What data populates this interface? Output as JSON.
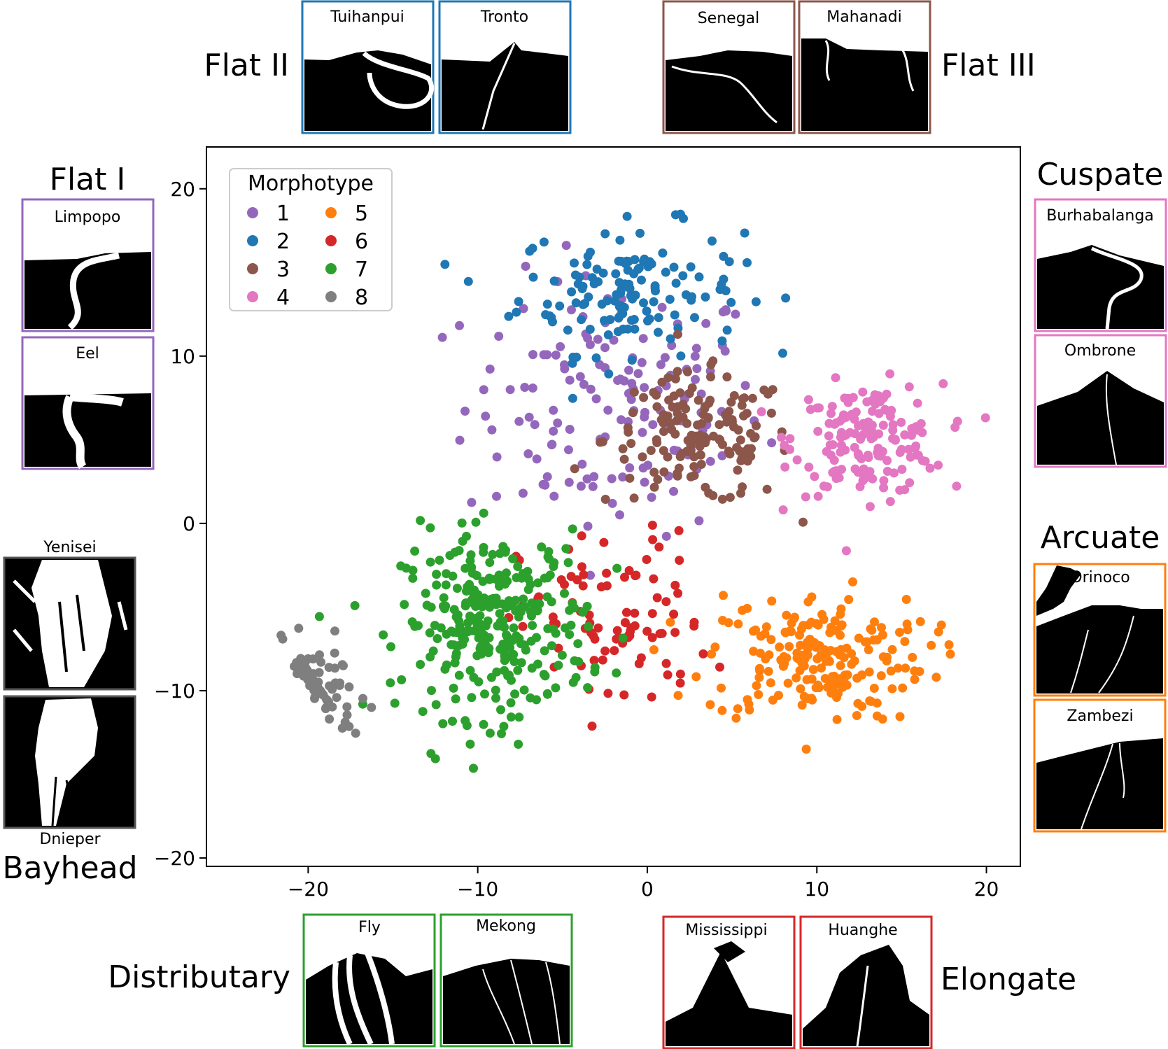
{
  "chart_data": {
    "type": "scatter",
    "title": "",
    "xlabel": "",
    "ylabel": "",
    "xlim": [
      -26,
      22
    ],
    "ylim": [
      -20.5,
      22.5
    ],
    "xticks": [
      -20,
      -10,
      0,
      10,
      20
    ],
    "yticks": [
      20,
      10,
      0,
      -10,
      -20
    ],
    "xtick_labels": [
      "−20",
      "−10",
      "0",
      "10",
      "20"
    ],
    "ytick_labels": [
      "20",
      "10",
      "0",
      "−10",
      "−20"
    ],
    "grid": false,
    "legend": {
      "title": "Morphotype",
      "placement": "upper-left",
      "columns": 2
    },
    "series": [
      {
        "name": "1",
        "color": "#9467bd",
        "center": [
          -2,
          7
        ],
        "spread": [
          8,
          7
        ],
        "count": 150
      },
      {
        "name": "2",
        "color": "#1f77b4",
        "center": [
          -1,
          14
        ],
        "spread": [
          6,
          3.5
        ],
        "count": 140
      },
      {
        "name": "3",
        "color": "#8c564b",
        "center": [
          3,
          5
        ],
        "spread": [
          5,
          3.5
        ],
        "count": 150
      },
      {
        "name": "4",
        "color": "#e377c2",
        "center": [
          13,
          5
        ],
        "spread": [
          4,
          3
        ],
        "count": 160
      },
      {
        "name": "5",
        "color": "#ff7f0e",
        "center": [
          10,
          -8
        ],
        "spread": [
          6,
          3.5
        ],
        "count": 200
      },
      {
        "name": "6",
        "color": "#d62728",
        "center": [
          -2,
          -6
        ],
        "spread": [
          5,
          5
        ],
        "count": 90
      },
      {
        "name": "7",
        "color": "#2ca02c",
        "center": [
          -9,
          -6
        ],
        "spread": [
          5,
          5
        ],
        "count": 300
      },
      {
        "name": "8",
        "color": "#7f7f7f",
        "center": [
          -20,
          -10
        ],
        "spread": [
          2.5,
          2.5
        ],
        "count": 90
      }
    ]
  },
  "groups": {
    "flat1": {
      "title": "Flat I",
      "panels": [
        "Limpopo",
        "Eel"
      ],
      "color": "#9467bd"
    },
    "flat2": {
      "title": "Flat II",
      "panels": [
        "Tuihanpui",
        "Tronto"
      ],
      "color": "#1f77b4"
    },
    "flat3": {
      "title": "Flat III",
      "panels": [
        "Senegal",
        "Mahanadi"
      ],
      "color": "#8c564b"
    },
    "cuspate": {
      "title": "Cuspate",
      "panels": [
        "Burhabalanga",
        "Ombrone"
      ],
      "color": "#e377c2"
    },
    "arcuate": {
      "title": "Arcuate",
      "panels": [
        "Orinoco",
        "Zambezi"
      ],
      "color": "#ff7f0e"
    },
    "elongate": {
      "title": "Elongate",
      "panels": [
        "Mississippi",
        "Huanghe"
      ],
      "color": "#d62728"
    },
    "distributary": {
      "title": "Distributary",
      "panels": [
        "Fly",
        "Mekong"
      ],
      "color": "#2ca02c"
    },
    "bayhead": {
      "title": "Bayhead",
      "panels": [
        "Yenisei",
        "Dnieper"
      ],
      "color": "#7f7f7f"
    }
  }
}
